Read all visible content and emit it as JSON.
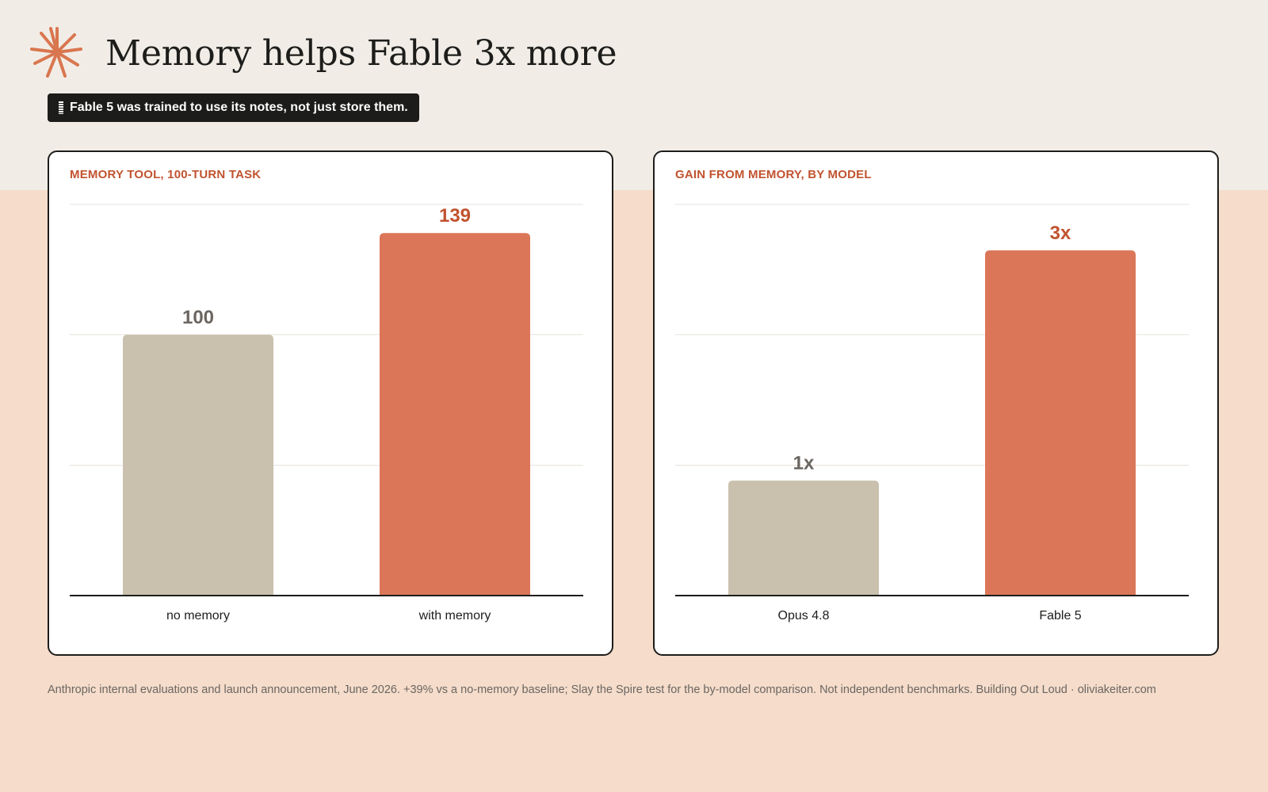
{
  "header": {
    "title": "Memory helps Fable 3x more",
    "tagline": "Fable 5 was trained to use its notes, not just store them.",
    "logo_icon": "asterisk-burst-icon",
    "accent_color": "#d9764f"
  },
  "chart_data": [
    {
      "type": "bar",
      "title": "MEMORY TOOL, 100-TURN TASK",
      "categories": [
        "no memory",
        "with memory"
      ],
      "values": [
        100,
        139
      ],
      "value_labels": [
        "100",
        "139"
      ],
      "ylim": [
        0,
        150
      ],
      "grid": true,
      "bar_colors": [
        "#c9c1ae",
        "#db7658"
      ],
      "label_colors": [
        "#6b6660",
        "#c1532f"
      ]
    },
    {
      "type": "bar",
      "title": "GAIN FROM MEMORY, BY MODEL",
      "categories": [
        "Opus 4.8",
        "Fable 5"
      ],
      "values": [
        1,
        3
      ],
      "value_labels": [
        "1x",
        "3x"
      ],
      "ylim": [
        0,
        3.4
      ],
      "grid": true,
      "bar_colors": [
        "#c9c1ae",
        "#db7658"
      ],
      "label_colors": [
        "#6b6660",
        "#c1532f"
      ]
    }
  ],
  "footer": {
    "note": "Anthropic internal evaluations and launch announcement, June 2026. +39% vs a no-memory baseline; Slay the Spire test for the by-model comparison. Not independent benchmarks. Building Out Loud · oliviakeiter.com"
  }
}
